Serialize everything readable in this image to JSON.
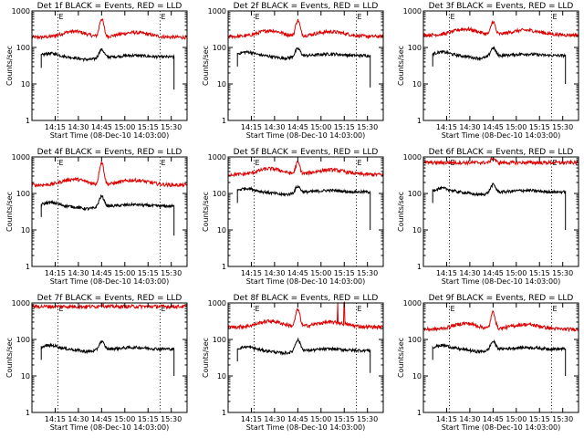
{
  "chart_data": {
    "type": "line",
    "y_scale": "log",
    "ylim": [
      1,
      1000
    ],
    "y_ticks": [
      "1",
      "10",
      "100",
      "1000"
    ],
    "ylabel": "Counts/sec",
    "xlabel": "Start Time (08-Dec-10 14:03:00)",
    "x_unit": "minutes",
    "xlim": [
      14.0,
      15.67
    ],
    "x_ticks": [
      {
        "label": "14:15",
        "value": 14.25
      },
      {
        "label": "14:30",
        "value": 14.5
      },
      {
        "label": "14:45",
        "value": 14.75
      },
      {
        "label": "15:00",
        "value": 15.0
      },
      {
        "label": "15:15",
        "value": 15.25
      },
      {
        "label": "15:30",
        "value": 15.5
      }
    ],
    "marker_lines": [
      14.28,
      15.38
    ],
    "marker_labels": [
      "E",
      "E"
    ],
    "grid": false,
    "panels": [
      {
        "title": "Det 1f BLACK = Events, RED = LLD",
        "red": {
          "level": 190,
          "peak": 600,
          "bumps": 2
        },
        "black": {
          "level": 55,
          "peak": 90,
          "start": 14.1,
          "end": 15.53,
          "endDrop": 7
        }
      },
      {
        "title": "Det 2f BLACK = Events, RED = LLD",
        "red": {
          "level": 200,
          "peak": 550,
          "bumps": 2
        },
        "black": {
          "level": 60,
          "peak": 95,
          "start": 14.1,
          "end": 15.53,
          "endDrop": 8
        }
      },
      {
        "title": "Det 3f BLACK = Events, RED = LLD",
        "red": {
          "level": 220,
          "peak": 500,
          "bumps": 2
        },
        "black": {
          "level": 60,
          "peak": 100,
          "start": 14.1,
          "end": 15.53,
          "endDrop": 10
        }
      },
      {
        "title": "Det 4f BLACK = Events, RED = LLD",
        "red": {
          "level": 170,
          "peak": 700,
          "bumps": 2
        },
        "black": {
          "level": 45,
          "peak": 85,
          "start": 14.1,
          "end": 15.53,
          "endDrop": 7
        }
      },
      {
        "title": "Det 5f BLACK = Events, RED = LLD",
        "red": {
          "level": 330,
          "peak": 700,
          "bumps": 2
        },
        "black": {
          "level": 110,
          "peak": 160,
          "start": 14.1,
          "end": 15.53,
          "endDrop": 10
        }
      },
      {
        "title": "Det 6f BLACK = Events, RED = LLD",
        "red": {
          "level": 700,
          "peak": 950,
          "bumps": 0
        },
        "black": {
          "level": 110,
          "peak": 180,
          "start": 14.1,
          "end": 15.53,
          "endDrop": 10
        }
      },
      {
        "title": "Det 7f BLACK = Events, RED = LLD",
        "red": {
          "level": 800,
          "peak": 900,
          "bumps": 0
        },
        "black": {
          "level": 55,
          "peak": 90,
          "start": 14.1,
          "end": 15.53,
          "endDrop": 10
        }
      },
      {
        "title": "Det 8f BLACK = Events, RED = LLD",
        "red": {
          "level": 220,
          "peak": 650,
          "bumps": 2,
          "spikes": [
            15.18,
            15.25
          ]
        },
        "black": {
          "level": 50,
          "peak": 100,
          "start": 14.1,
          "end": 15.53,
          "endDrop": 12
        }
      },
      {
        "title": "Det 9f BLACK = Events, RED = LLD",
        "red": {
          "level": 190,
          "peak": 550,
          "bumps": 2
        },
        "black": {
          "level": 55,
          "peak": 90,
          "start": 14.1,
          "end": 15.53,
          "endDrop": 10
        }
      }
    ]
  }
}
